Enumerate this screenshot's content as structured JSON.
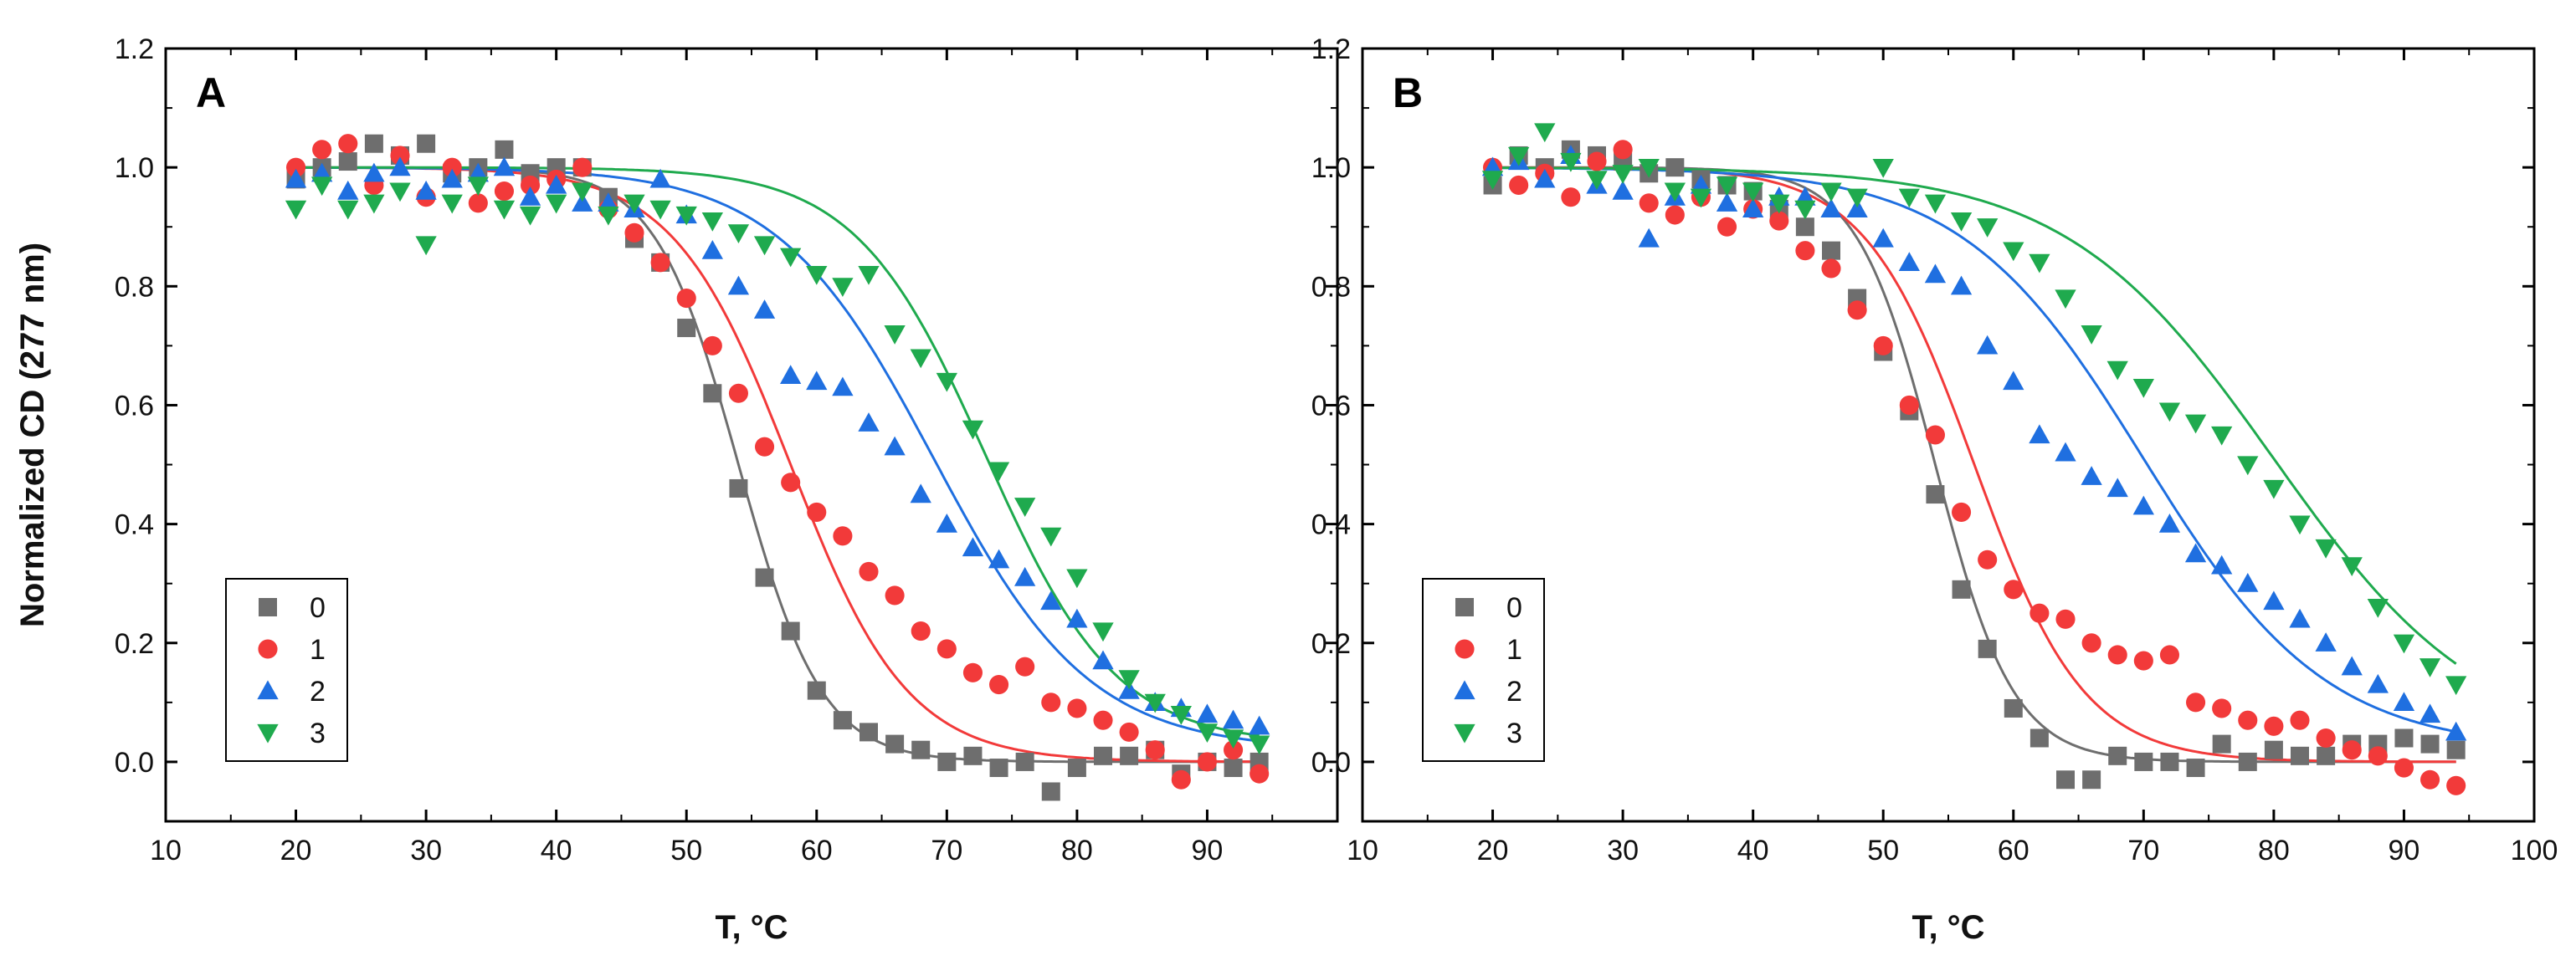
{
  "chart_data": [
    {
      "type": "scatter",
      "panel_label": "A",
      "xlabel": "T, °C",
      "ylabel": "Normalized CD (277 nm)",
      "xlim": [
        10,
        100
      ],
      "ylim": [
        -0.1,
        1.2
      ],
      "xticks": [
        10,
        20,
        30,
        40,
        50,
        60,
        70,
        80,
        90
      ],
      "yticks": [
        0.0,
        0.2,
        0.4,
        0.6,
        0.8,
        1.0,
        1.2
      ],
      "legend_position": "bottom-left",
      "series": [
        {
          "name": "0",
          "color": "#6e6e6e",
          "marker": "square",
          "Tm": 54,
          "width": 3.2,
          "upper": 1.0,
          "lower": 0.0,
          "x": [
            20,
            22,
            24,
            26,
            28,
            30,
            32,
            34,
            36,
            38,
            40,
            42,
            44,
            46,
            48,
            50,
            52,
            54,
            56,
            58,
            60,
            62,
            64,
            66,
            68,
            70,
            72,
            74,
            76,
            78,
            80,
            82,
            84,
            86,
            88,
            90,
            92,
            94
          ],
          "y": [
            0.98,
            1.0,
            1.01,
            1.04,
            1.02,
            1.04,
            0.99,
            1.0,
            1.03,
            0.99,
            1.0,
            1.0,
            0.95,
            0.88,
            0.84,
            0.73,
            0.62,
            0.46,
            0.31,
            0.22,
            0.12,
            0.07,
            0.05,
            0.03,
            0.02,
            0.0,
            0.01,
            -0.01,
            0.0,
            -0.05,
            -0.01,
            0.01,
            0.01,
            0.02,
            -0.02,
            0.0,
            -0.01,
            0.0
          ]
        },
        {
          "name": "1",
          "color": "#f23a3a",
          "marker": "circle",
          "Tm": 58,
          "width": 4.5,
          "upper": 1.0,
          "lower": 0.0,
          "x": [
            20,
            22,
            24,
            26,
            28,
            30,
            32,
            34,
            36,
            38,
            40,
            42,
            44,
            46,
            48,
            50,
            52,
            54,
            56,
            58,
            60,
            62,
            64,
            66,
            68,
            70,
            72,
            74,
            76,
            78,
            80,
            82,
            84,
            86,
            88,
            90,
            92,
            94
          ],
          "y": [
            1.0,
            1.03,
            1.04,
            0.97,
            1.02,
            0.95,
            1.0,
            0.94,
            0.96,
            0.97,
            0.98,
            1.0,
            0.93,
            0.89,
            0.84,
            0.78,
            0.7,
            0.62,
            0.53,
            0.47,
            0.42,
            0.38,
            0.32,
            0.28,
            0.22,
            0.19,
            0.15,
            0.13,
            0.16,
            0.1,
            0.09,
            0.07,
            0.05,
            0.02,
            -0.03,
            0.0,
            0.02,
            -0.02
          ]
        },
        {
          "name": "2",
          "color": "#1f6fe0",
          "marker": "triangle-up",
          "Tm": 69,
          "width": 6.0,
          "upper": 1.0,
          "lower": 0.02,
          "x": [
            20,
            22,
            24,
            26,
            28,
            30,
            32,
            34,
            36,
            38,
            40,
            42,
            44,
            46,
            48,
            50,
            52,
            54,
            56,
            58,
            60,
            62,
            64,
            66,
            68,
            70,
            72,
            74,
            76,
            78,
            80,
            82,
            84,
            86,
            88,
            90,
            92,
            94
          ],
          "y": [
            0.98,
            0.99,
            0.96,
            0.99,
            1.0,
            0.96,
            0.98,
            0.99,
            1.0,
            0.95,
            0.97,
            0.94,
            0.94,
            0.93,
            0.98,
            0.92,
            0.86,
            0.8,
            0.76,
            0.65,
            0.64,
            0.63,
            0.57,
            0.53,
            0.45,
            0.4,
            0.36,
            0.34,
            0.31,
            0.27,
            0.24,
            0.17,
            0.12,
            0.1,
            0.09,
            0.08,
            0.07,
            0.06
          ]
        },
        {
          "name": "3",
          "color": "#1faa4e",
          "marker": "triangle-down",
          "Tm": 73,
          "width": 5.0,
          "upper": 1.0,
          "lower": 0.03,
          "x": [
            20,
            22,
            24,
            26,
            28,
            30,
            32,
            34,
            36,
            38,
            40,
            42,
            44,
            46,
            48,
            50,
            52,
            54,
            56,
            58,
            60,
            62,
            64,
            66,
            68,
            70,
            72,
            74,
            76,
            78,
            80,
            82,
            84,
            86,
            88,
            90,
            92,
            94
          ],
          "y": [
            0.93,
            0.97,
            0.93,
            0.94,
            0.96,
            0.87,
            0.94,
            0.97,
            0.93,
            0.92,
            0.94,
            0.96,
            0.92,
            0.94,
            0.93,
            0.92,
            0.91,
            0.89,
            0.87,
            0.85,
            0.82,
            0.8,
            0.82,
            0.72,
            0.68,
            0.64,
            0.56,
            0.49,
            0.43,
            0.38,
            0.31,
            0.22,
            0.14,
            0.1,
            0.08,
            0.05,
            0.04,
            0.03
          ]
        }
      ]
    },
    {
      "type": "scatter",
      "panel_label": "B",
      "xlabel": "T, °C",
      "ylabel": "",
      "xlim": [
        10,
        100
      ],
      "ylim": [
        -0.1,
        1.2
      ],
      "xticks": [
        10,
        20,
        30,
        40,
        50,
        60,
        70,
        80,
        90,
        100
      ],
      "yticks": [
        0.0,
        0.2,
        0.4,
        0.6,
        0.8,
        1.0,
        1.2
      ],
      "legend_position": "bottom-left",
      "series": [
        {
          "name": "0",
          "color": "#6e6e6e",
          "marker": "square",
          "Tm": 54,
          "width": 3.0,
          "upper": 1.0,
          "lower": 0.0,
          "x": [
            20,
            22,
            24,
            26,
            28,
            30,
            32,
            34,
            36,
            38,
            40,
            42,
            44,
            46,
            48,
            50,
            52,
            54,
            56,
            58,
            60,
            62,
            64,
            66,
            68,
            70,
            72,
            74,
            76,
            78,
            80,
            82,
            84,
            86,
            88,
            90,
            92,
            94
          ],
          "y": [
            0.97,
            1.02,
            1.0,
            1.03,
            1.02,
            1.01,
            0.99,
            1.0,
            0.98,
            0.97,
            0.96,
            0.93,
            0.9,
            0.86,
            0.78,
            0.69,
            0.59,
            0.45,
            0.29,
            0.19,
            0.09,
            0.04,
            -0.03,
            -0.03,
            0.01,
            0.0,
            0.0,
            -0.01,
            0.03,
            0.0,
            0.02,
            0.01,
            0.01,
            0.03,
            0.03,
            0.04,
            0.03,
            0.02
          ]
        },
        {
          "name": "1",
          "color": "#f23a3a",
          "marker": "circle",
          "Tm": 57,
          "width": 4.2,
          "upper": 1.0,
          "lower": 0.0,
          "x": [
            20,
            22,
            24,
            26,
            28,
            30,
            32,
            34,
            36,
            38,
            40,
            42,
            44,
            46,
            48,
            50,
            52,
            54,
            56,
            58,
            60,
            62,
            64,
            66,
            68,
            70,
            72,
            74,
            76,
            78,
            80,
            82,
            84,
            86,
            88,
            90,
            92,
            94
          ],
          "y": [
            1.0,
            0.97,
            0.99,
            0.95,
            1.01,
            1.03,
            0.94,
            0.92,
            0.95,
            0.9,
            0.93,
            0.91,
            0.86,
            0.83,
            0.76,
            0.7,
            0.6,
            0.55,
            0.42,
            0.34,
            0.29,
            0.25,
            0.24,
            0.2,
            0.18,
            0.17,
            0.18,
            0.1,
            0.09,
            0.07,
            0.06,
            0.07,
            0.04,
            0.02,
            0.01,
            -0.01,
            -0.03,
            -0.04
          ]
        },
        {
          "name": "2",
          "color": "#1f6fe0",
          "marker": "triangle-up",
          "Tm": 70,
          "width": 7.0,
          "upper": 1.0,
          "lower": 0.02,
          "x": [
            20,
            22,
            24,
            26,
            28,
            30,
            32,
            34,
            36,
            38,
            40,
            42,
            44,
            46,
            48,
            50,
            52,
            54,
            56,
            58,
            60,
            62,
            64,
            66,
            68,
            70,
            72,
            74,
            76,
            78,
            80,
            82,
            84,
            86,
            88,
            90,
            92,
            94
          ],
          "y": [
            1.0,
            1.01,
            0.98,
            1.02,
            0.97,
            0.96,
            0.88,
            0.95,
            0.97,
            0.94,
            0.93,
            0.95,
            0.95,
            0.93,
            0.93,
            0.88,
            0.84,
            0.82,
            0.8,
            0.7,
            0.64,
            0.55,
            0.52,
            0.48,
            0.46,
            0.43,
            0.4,
            0.35,
            0.33,
            0.3,
            0.27,
            0.24,
            0.2,
            0.16,
            0.13,
            0.1,
            0.08,
            0.05
          ]
        },
        {
          "name": "3",
          "color": "#1faa4e",
          "marker": "triangle-down",
          "Tm": 80,
          "width": 8.0,
          "upper": 1.0,
          "lower": 0.02,
          "x": [
            20,
            22,
            24,
            26,
            28,
            30,
            32,
            34,
            36,
            38,
            40,
            42,
            44,
            46,
            48,
            50,
            52,
            54,
            56,
            58,
            60,
            62,
            64,
            66,
            68,
            70,
            72,
            74,
            76,
            78,
            80,
            82,
            84,
            86,
            88,
            90,
            92,
            94
          ],
          "y": [
            0.98,
            1.02,
            1.06,
            1.01,
            0.98,
            0.99,
            1.0,
            0.96,
            0.95,
            0.97,
            0.96,
            0.94,
            0.93,
            0.96,
            0.95,
            1.0,
            0.95,
            0.94,
            0.91,
            0.9,
            0.86,
            0.84,
            0.78,
            0.72,
            0.66,
            0.63,
            0.59,
            0.57,
            0.55,
            0.5,
            0.46,
            0.4,
            0.36,
            0.33,
            0.26,
            0.2,
            0.16,
            0.13
          ]
        }
      ]
    }
  ]
}
